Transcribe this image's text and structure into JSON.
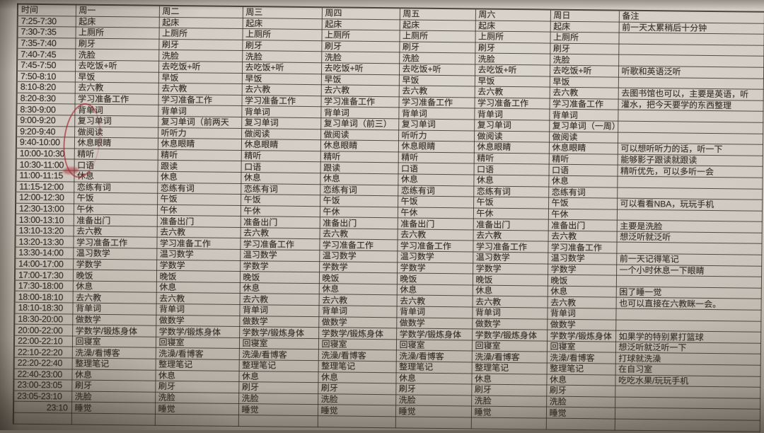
{
  "colors": {
    "paper": "#cfc9c1",
    "wall": "#6b645b",
    "ink": "#38322a",
    "grid_line": "#362e25",
    "red_pen": "#a82a32"
  },
  "table": {
    "headers": [
      "时间",
      "周一",
      "周二",
      "周三",
      "周四",
      "周五",
      "周六",
      "周日",
      "备注"
    ],
    "rows": [
      {
        "time": "7:25-7:30",
        "cells": [
          "起床",
          "起床",
          "起床",
          "起床",
          "起床",
          "起床",
          "起床"
        ],
        "note": "前一天太累稍后十分钟"
      },
      {
        "time": "7:30-7:35",
        "cells": [
          "上厕所",
          "上厕所",
          "上厕所",
          "上厕所",
          "上厕所",
          "上厕所",
          "上厕所"
        ],
        "note": ""
      },
      {
        "time": "7:35-7:40",
        "cells": [
          "刷牙",
          "刷牙",
          "刷牙",
          "刷牙",
          "刷牙",
          "刷牙",
          "刷牙"
        ],
        "note": ""
      },
      {
        "time": "7:40-7:45",
        "cells": [
          "洗脸",
          "洗脸",
          "洗脸",
          "洗脸",
          "洗脸",
          "洗脸",
          "洗脸"
        ],
        "note": ""
      },
      {
        "time": "7:45-7:50",
        "cells": [
          "去吃饭+听",
          "去吃饭+听",
          "去吃饭+听",
          "去吃饭+听",
          "去吃饭+听",
          "去吃饭+听",
          "去吃饭+听"
        ],
        "note": "听歌和英语泛听"
      },
      {
        "time": "7:50-8:10",
        "cells": [
          "早饭",
          "早饭",
          "早饭",
          "早饭",
          "早饭",
          "早饭",
          "早饭"
        ],
        "note": ""
      },
      {
        "time": "8:10-8:20",
        "cells": [
          "去六教",
          "去六教",
          "去六教",
          "去六教",
          "去六教",
          "去六教",
          "去六教"
        ],
        "note": "去图书馆也可以，主要是英语，听"
      },
      {
        "time": "8:20-8:30",
        "cells": [
          "学习准备工作",
          "学习准备工作",
          "学习准备工作",
          "学习准备工作",
          "学习准备工作",
          "学习准备工作",
          "学习准备工作"
        ],
        "note": "灌水，把今天要学的东西整理"
      },
      {
        "time": "8:30-9:00",
        "cells": [
          "背单词",
          "背单词",
          "背单词",
          "背单词",
          "背单词",
          "背单词",
          "背单词"
        ],
        "note": ""
      },
      {
        "time": "9:00-9:20",
        "cells": [
          "复习单词",
          "复习单词（前两天",
          "复习单词",
          "复习单词（前三）",
          "复习单词",
          "复习单词",
          "复习单词（一周）"
        ],
        "note": ""
      },
      {
        "time": "9:20-9:40",
        "cells": [
          "做阅读",
          "听听力",
          "做阅读",
          "做阅读",
          "听听力",
          "做阅读",
          "做阅读"
        ],
        "note": ""
      },
      {
        "time": "9:40-10:00",
        "cells": [
          "休息眼睛",
          "休息眼睛",
          "休息眼睛",
          "休息眼睛",
          "休息眼睛",
          "休息眼睛",
          "休息眼睛"
        ],
        "note": "可以想听听力的话，听一下"
      },
      {
        "time": "10:00-10:30",
        "cells": [
          "精听",
          "精听",
          "精听",
          "精听",
          "精听",
          "精听",
          "精听"
        ],
        "note": "能够影子跟读就跟读"
      },
      {
        "time": "10:30-11:00",
        "cells": [
          "口语",
          "跟读",
          "口语",
          "跟读",
          "口语",
          "口语",
          "口语"
        ],
        "note": "精听优先，可以多听一会"
      },
      {
        "time": "11:00-11:15",
        "cells": [
          "休息",
          "休息",
          "休息",
          "休息",
          "休息",
          "休息",
          "休息"
        ],
        "note": ""
      },
      {
        "time": "11:15-12:00",
        "cells": [
          "恋练有词",
          "恋练有词",
          "恋练有词",
          "恋练有词",
          "恋练有词",
          "恋练有词",
          "恋练有词"
        ],
        "note": ""
      },
      {
        "time": "12:00-12:30",
        "cells": [
          "午饭",
          "午饭",
          "午饭",
          "午饭",
          "午饭",
          "午饭",
          "午饭"
        ],
        "note": "可以看看NBA，玩玩手机"
      },
      {
        "time": "12:30-13:00",
        "cells": [
          "午休",
          "午休",
          "午休",
          "午休",
          "午休",
          "午休",
          "午休"
        ],
        "note": ""
      },
      {
        "time": "13:00-13:10",
        "cells": [
          "准备出门",
          "准备出门",
          "准备出门",
          "准备出门",
          "准备出门",
          "准备出门",
          "准备出门"
        ],
        "note": "主要是洗脸"
      },
      {
        "time": "13:10-13:20",
        "cells": [
          "去六教",
          "去六教",
          "去六教",
          "去六教",
          "去六教",
          "去六教",
          "去六教"
        ],
        "note": "想泛听就泛听"
      },
      {
        "time": "13:20-13:30",
        "cells": [
          "学习准备工作",
          "学习准备工作",
          "学习准备工作",
          "学习准备工作",
          "学习准备工作",
          "学习准备工作",
          "学习准备工作"
        ],
        "note": ""
      },
      {
        "time": "13:30-14:00",
        "cells": [
          "温习数学",
          "温习数学",
          "温习数学",
          "温习数学",
          "温习数学",
          "温习数学",
          "温习数学"
        ],
        "note": "前一天记得笔记"
      },
      {
        "time": "14:00-17:00",
        "cells": [
          "学数学",
          "学数学",
          "学数学",
          "学数学",
          "学数学",
          "学数学",
          "学数学"
        ],
        "note": "一个小时休息一下眼睛"
      },
      {
        "time": "17:00-17:30",
        "cells": [
          "晚饭",
          "晚饭",
          "晚饭",
          "晚饭",
          "晚饭",
          "晚饭",
          "晚饭"
        ],
        "note": ""
      },
      {
        "time": "17:30-18:00",
        "cells": [
          "休息",
          "休息",
          "休息",
          "休息",
          "休息",
          "休息",
          "休息"
        ],
        "note": "困了睡一觉"
      },
      {
        "time": "18:00-18:10",
        "cells": [
          "去六教",
          "去六教",
          "去六教",
          "去六教",
          "去六教",
          "去六教",
          "去六教"
        ],
        "note": "也可以直接在六教眯一会。"
      },
      {
        "time": "18:10-18:30",
        "cells": [
          "背单词",
          "背单词",
          "背单词",
          "背单词",
          "背单词",
          "背单词",
          "背单词"
        ],
        "note": ""
      },
      {
        "time": "18:30-20:00",
        "cells": [
          "做数学",
          "做数学",
          "做数学",
          "做数学",
          "做数学",
          "做数学",
          "做数学"
        ],
        "note": ""
      },
      {
        "time": "20:00-22:00",
        "cells": [
          "学数学/锻炼身体",
          "学数学/锻炼身体",
          "学数学/锻炼身体",
          "学数学/锻炼身体",
          "学数学/锻炼身体",
          "学数学/锻炼身体",
          "学数学/锻炼身体"
        ],
        "note": "如果学的特别累打篮球"
      },
      {
        "time": "22:00-22:10",
        "cells": [
          "回寝室",
          "回寝室",
          "回寝室",
          "回寝室",
          "回寝室",
          "回寝室",
          "回寝室"
        ],
        "note": "想泛听就泛听一下"
      },
      {
        "time": "22:10-22:20",
        "cells": [
          "洗澡/看博客",
          "洗澡/看博客",
          "洗澡/看博客",
          "洗澡/看博客",
          "洗澡/看博客",
          "洗澡/看博客",
          "洗澡/看博客"
        ],
        "note": "打球就洗澡"
      },
      {
        "time": "22:20-22:40",
        "cells": [
          "整理笔记",
          "整理笔记",
          "整理笔记",
          "整理笔记",
          "整理笔记",
          "整理笔记",
          "整理笔记"
        ],
        "note": "在自习室"
      },
      {
        "time": "22:40-23:00",
        "cells": [
          "休息",
          "休息",
          "休息",
          "休息",
          "休息",
          "休息",
          "休息"
        ],
        "note": "吃吃水果/玩玩手机"
      },
      {
        "time": "23:00-23:05",
        "cells": [
          "刷牙",
          "刷牙",
          "刷牙",
          "刷牙",
          "刷牙",
          "刷牙",
          "刷牙"
        ],
        "note": ""
      },
      {
        "time": "23:05-23:10",
        "cells": [
          "洗脸",
          "洗脸",
          "洗脸",
          "洗脸",
          "洗脸",
          "洗脸",
          "洗脸"
        ],
        "note": ""
      },
      {
        "time": "23:10",
        "align": "right",
        "cells": [
          "睡觉",
          "睡觉",
          "睡觉",
          "睡觉",
          "睡觉",
          "睡觉",
          "睡觉"
        ],
        "note": ""
      },
      {
        "time": "",
        "cells": [
          "",
          "",
          "",
          "",
          "",
          "",
          ""
        ],
        "note": ""
      }
    ]
  }
}
